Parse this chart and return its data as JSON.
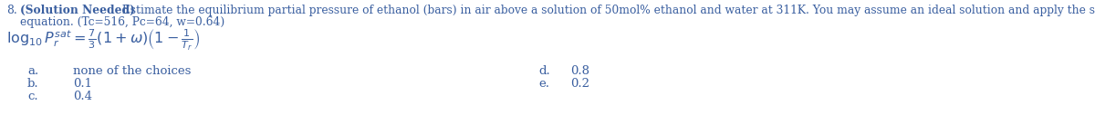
{
  "line1_num": "8.",
  "line1_bold": "(Solution Needed)",
  "line1_rest": " Estimate the equilibrium partial pressure of ethanol (bars) in air above a solution of 50mol% ethanol and water at 311K. You may assume an ideal solution and apply the shortcut vapor pressure",
  "line2": "equation. (Tc=516, Pc=64, w=0.64)",
  "formula": "$\\log_{10}P_r^{sat} = \\frac{7}{3}(1+\\omega)\\left(1 - \\frac{1}{T_r}\\right)$",
  "choice_a_label": "a.",
  "choice_a_text": "none of the choices",
  "choice_b_label": "b.",
  "choice_b_text": "0.1",
  "choice_c_label": "c.",
  "choice_c_text": "0.4",
  "choice_d_label": "d.",
  "choice_d_text": "0.8",
  "choice_e_label": "e.",
  "choice_e_text": "0.2",
  "text_color": "#3a5fa0",
  "bg_color": "#ffffff",
  "fs_main": 8.8,
  "fs_formula": 11.5,
  "fs_choices": 9.5
}
